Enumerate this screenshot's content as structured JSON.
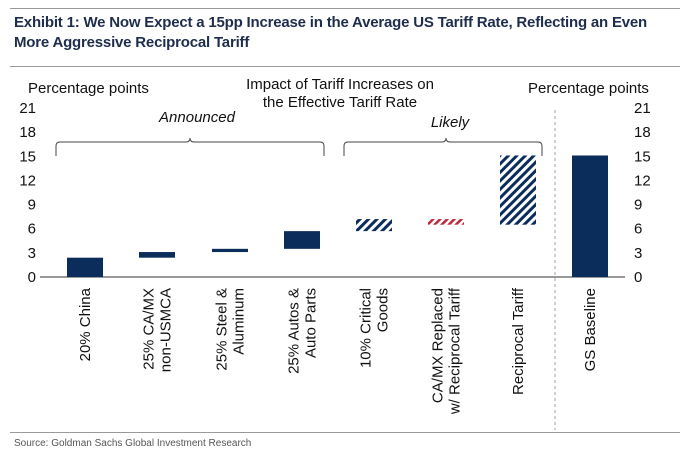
{
  "title": "Exhibit 1: We Now Expect a 15pp Increase in the Average US Tariff Rate, Reflecting an Even More Aggressive Reciprocal Tariff",
  "source": "Source: Goldman Sachs Global Investment Research",
  "colors": {
    "navy": "#0b2d5b",
    "red": "#c0283a",
    "divider": "#a0a0a0"
  },
  "chart_data": {
    "type": "bar",
    "subtype": "waterfall",
    "chart_title": [
      "Impact of Tariff Increases on",
      "the Effective Tariff Rate"
    ],
    "y_label_left": "Percentage points",
    "y_label_right": "Percentage points",
    "ylim": [
      0,
      21
    ],
    "yticks": [
      0,
      3,
      6,
      9,
      12,
      15,
      18,
      21
    ],
    "groups": [
      {
        "label": "Announced",
        "bars": [
          0,
          1,
          2,
          3
        ]
      },
      {
        "label": "Likely",
        "bars": [
          4,
          5,
          6
        ]
      }
    ],
    "bars": [
      {
        "category": [
          "20% China"
        ],
        "start": 0,
        "end": 2.4,
        "style": "solid-navy"
      },
      {
        "category": [
          "25% CA/MX",
          "non-USMCA"
        ],
        "start": 2.4,
        "end": 3.1,
        "style": "solid-navy"
      },
      {
        "category": [
          "25% Steel &",
          "Aluminum"
        ],
        "start": 3.1,
        "end": 3.5,
        "style": "solid-navy"
      },
      {
        "category": [
          "25% Autos &",
          "Auto Parts"
        ],
        "start": 3.5,
        "end": 5.7,
        "style": "solid-navy"
      },
      {
        "category": [
          "10% Critical",
          "Goods"
        ],
        "start": 5.7,
        "end": 7.2,
        "style": "hatched-navy"
      },
      {
        "category": [
          "CA/MX Replaced",
          "w/ Reciprocal Tariff"
        ],
        "start": 6.5,
        "end": 7.2,
        "style": "hatched-red"
      },
      {
        "category": [
          "Reciprocal Tariff"
        ],
        "start": 6.5,
        "end": 15.1,
        "style": "hatched-navy"
      },
      {
        "category": [
          "GS Baseline"
        ],
        "start": 0,
        "end": 15.1,
        "style": "solid-navy"
      }
    ]
  }
}
